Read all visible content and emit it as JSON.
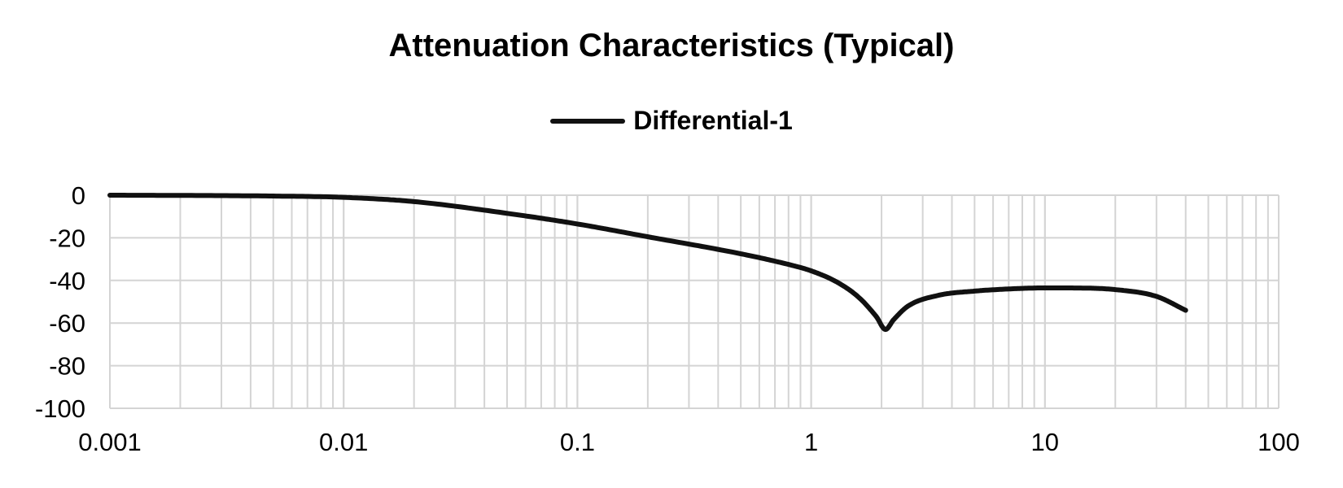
{
  "chart_data": {
    "type": "line",
    "title": "Attenuation Characteristics (Typical)",
    "xlabel": "",
    "ylabel": "",
    "xscale": "log",
    "xlim": [
      0.001,
      100
    ],
    "ylim": [
      -100,
      0
    ],
    "grid": true,
    "legend_position": "top-center",
    "x_ticks": [
      "0.001",
      "0.01",
      "0.1",
      "1",
      "10",
      "100"
    ],
    "y_ticks": [
      "0",
      "-20",
      "-40",
      "-60",
      "-80",
      "-100"
    ],
    "series": [
      {
        "name": "Differential-1",
        "color": "#111111",
        "x": [
          0.001,
          0.002,
          0.005,
          0.01,
          0.02,
          0.05,
          0.1,
          0.2,
          0.5,
          0.8,
          1.0,
          1.3,
          1.6,
          1.9,
          2.08,
          2.25,
          2.6,
          3.5,
          5,
          7,
          10,
          15,
          20,
          30,
          40
        ],
        "y": [
          0,
          -0.1,
          -0.4,
          -1,
          -3,
          -8.5,
          -13.5,
          -19.5,
          -27.5,
          -32.5,
          -35.5,
          -41,
          -48,
          -57,
          -63,
          -58.5,
          -52,
          -47,
          -45,
          -44,
          -43.5,
          -43.6,
          -44.3,
          -47.5,
          -54
        ]
      }
    ]
  }
}
